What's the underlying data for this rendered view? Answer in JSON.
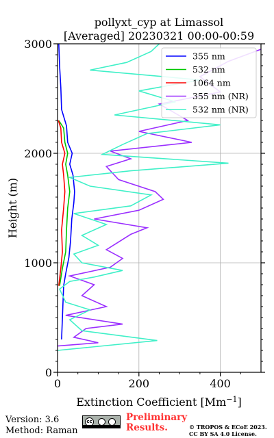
{
  "chart_data": {
    "type": "line",
    "title_line1": "pollyxt_cyp at Limassol",
    "title_line2": "[Averaged] 20230321 00:00-00:59",
    "xlabel": "Extinction Coefficient [Mm",
    "xlabel_sup": "−1",
    "xlabel_end": "]",
    "ylabel": "Height (m)",
    "xlim": [
      0,
      500
    ],
    "ylim": [
      0,
      3000
    ],
    "xticks": [
      0,
      200,
      400
    ],
    "yticks": [
      0,
      1000,
      2000,
      3000
    ],
    "grid": true,
    "legend_position": "top-right",
    "series": [
      {
        "name": "355 nm",
        "color": "#0000ff",
        "points": [
          [
            10,
            300
          ],
          [
            15,
            790
          ],
          [
            20,
            900
          ],
          [
            28,
            1050
          ],
          [
            32,
            1200
          ],
          [
            35,
            1400
          ],
          [
            40,
            1550
          ],
          [
            42,
            1650
          ],
          [
            38,
            1800
          ],
          [
            30,
            1900
          ],
          [
            36,
            2000
          ],
          [
            25,
            2100
          ],
          [
            22,
            2250
          ],
          [
            10,
            2400
          ],
          [
            8,
            2600
          ],
          [
            5,
            2800
          ],
          [
            3,
            3000
          ]
        ]
      },
      {
        "name": "532 nm",
        "color": "#00c800",
        "points": [
          [
            5,
            790
          ],
          [
            12,
            950
          ],
          [
            20,
            1100
          ],
          [
            22,
            1300
          ],
          [
            25,
            1500
          ],
          [
            30,
            1650
          ],
          [
            25,
            1800
          ],
          [
            20,
            1900
          ],
          [
            25,
            2000
          ],
          [
            18,
            2100
          ],
          [
            15,
            2230
          ],
          [
            3,
            2300
          ]
        ]
      },
      {
        "name": "1064 nm",
        "color": "#ff0000",
        "points": [
          [
            3,
            790
          ],
          [
            8,
            950
          ],
          [
            12,
            1100
          ],
          [
            10,
            1300
          ],
          [
            15,
            1500
          ],
          [
            18,
            1650
          ],
          [
            15,
            1800
          ],
          [
            12,
            1900
          ],
          [
            18,
            2000
          ],
          [
            10,
            2100
          ],
          [
            8,
            2230
          ],
          [
            2,
            2300
          ]
        ]
      },
      {
        "name": "355 nm (NR)",
        "color": "#9b30ff",
        "points": [
          [
            0,
            240
          ],
          [
            100,
            270
          ],
          [
            40,
            320
          ],
          [
            70,
            400
          ],
          [
            160,
            440
          ],
          [
            20,
            520
          ],
          [
            120,
            600
          ],
          [
            60,
            700
          ],
          [
            90,
            800
          ],
          [
            30,
            880
          ],
          [
            130,
            960
          ],
          [
            160,
            1040
          ],
          [
            120,
            1120
          ],
          [
            180,
            1260
          ],
          [
            220,
            1320
          ],
          [
            90,
            1400
          ],
          [
            200,
            1480
          ],
          [
            260,
            1580
          ],
          [
            240,
            1650
          ],
          [
            150,
            1760
          ],
          [
            120,
            1880
          ],
          [
            180,
            1950
          ],
          [
            130,
            2020
          ],
          [
            330,
            2100
          ],
          [
            200,
            2200
          ],
          [
            320,
            2300
          ],
          [
            250,
            2450
          ],
          [
            400,
            2560
          ],
          [
            350,
            2700
          ],
          [
            420,
            2840
          ],
          [
            500,
            2950
          ]
        ]
      },
      {
        "name": "532 nm (NR)",
        "color": "#40f0c8",
        "points": [
          [
            0,
            200
          ],
          [
            245,
            290
          ],
          [
            60,
            380
          ],
          [
            30,
            480
          ],
          [
            80,
            570
          ],
          [
            20,
            640
          ],
          [
            5,
            760
          ],
          [
            30,
            830
          ],
          [
            90,
            870
          ],
          [
            160,
            930
          ],
          [
            60,
            1000
          ],
          [
            40,
            1080
          ],
          [
            100,
            1160
          ],
          [
            60,
            1250
          ],
          [
            120,
            1350
          ],
          [
            40,
            1450
          ],
          [
            180,
            1520
          ],
          [
            230,
            1620
          ],
          [
            80,
            1700
          ],
          [
            30,
            1780
          ],
          [
            180,
            1840
          ],
          [
            420,
            1910
          ],
          [
            110,
            1990
          ],
          [
            160,
            2080
          ],
          [
            220,
            2180
          ],
          [
            400,
            2260
          ],
          [
            140,
            2350
          ],
          [
            290,
            2470
          ],
          [
            200,
            2570
          ],
          [
            350,
            2670
          ],
          [
            80,
            2760
          ],
          [
            170,
            2830
          ],
          [
            230,
            2930
          ],
          [
            250,
            3000
          ]
        ]
      }
    ]
  },
  "footer": {
    "version": "Version: 3.6",
    "method": "Method: Raman",
    "prelim_line1": "Preliminary",
    "prelim_line2": "Results.",
    "copyright_line1": "© TROPOS & ECoE 2023.",
    "copyright_line2": "CC BY SA 4.0 License."
  }
}
